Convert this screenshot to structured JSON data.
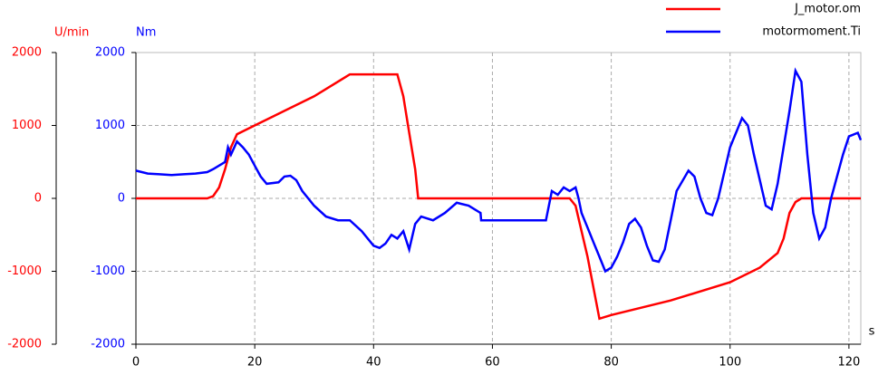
{
  "chart_data": {
    "type": "line",
    "y_label": "U/min",
    "y2_label": "Nm",
    "x_label": "s",
    "xlim": [
      0,
      122
    ],
    "xticks": [
      0,
      20,
      40,
      60,
      80,
      100,
      120
    ],
    "ylim": [
      -2000,
      2000
    ],
    "yticks": [
      -2000,
      -1000,
      0,
      1000,
      2000
    ],
    "y2lim": [
      -2000,
      2000
    ],
    "y2ticks": [
      -2000,
      -1000,
      0,
      1000,
      2000
    ],
    "y_color": "#ff0000",
    "y2_color": "#0000ff",
    "grid": true,
    "legend": "top-right",
    "series": [
      {
        "name": "J_motor.om",
        "color": "#ff0000",
        "x": [
          0,
          12,
          13,
          14,
          15,
          16,
          17,
          20,
          25,
          30,
          36,
          44,
          45,
          46,
          47,
          47.5,
          70,
          73,
          74,
          76,
          78,
          80,
          90,
          100,
          105,
          108,
          109,
          110,
          111,
          112,
          122
        ],
        "values": [
          0,
          0,
          30,
          150,
          400,
          700,
          880,
          1000,
          1200,
          1400,
          1700,
          1700,
          1400,
          900,
          400,
          0,
          0,
          0,
          -100,
          -800,
          -1650,
          -1600,
          -1400,
          -1150,
          -950,
          -750,
          -550,
          -200,
          -50,
          0,
          0
        ]
      },
      {
        "name": "motormoment.Ti",
        "color": "#0000ff",
        "axis": "y2",
        "x": [
          0,
          2,
          4,
          6,
          8,
          10,
          12,
          13,
          14,
          15,
          15.5,
          16,
          17,
          18,
          19,
          20,
          21,
          22,
          24,
          25,
          26,
          27,
          28,
          30,
          32,
          34,
          36,
          38,
          40,
          41,
          42,
          43,
          44,
          45,
          46,
          47,
          48,
          50,
          52,
          54,
          56,
          58,
          58.1,
          69,
          70,
          71,
          72,
          73,
          74,
          74.5,
          75,
          76,
          77,
          78,
          79,
          80,
          81,
          82,
          83,
          84,
          85,
          86,
          87,
          88,
          89,
          90,
          91,
          93,
          94,
          95,
          96,
          97,
          98,
          100,
          102,
          103,
          104,
          106,
          107,
          108,
          110,
          111,
          112,
          113,
          114,
          115,
          116,
          117,
          119,
          120,
          121.5,
          122
        ],
        "values": [
          380,
          340,
          330,
          320,
          330,
          340,
          360,
          400,
          450,
          500,
          700,
          600,
          780,
          700,
          600,
          450,
          300,
          200,
          220,
          300,
          310,
          250,
          100,
          -100,
          -250,
          -300,
          -300,
          -450,
          -650,
          -680,
          -620,
          -500,
          -550,
          -450,
          -700,
          -350,
          -250,
          -300,
          -200,
          -60,
          -100,
          -200,
          -300,
          -300,
          100,
          50,
          150,
          100,
          150,
          0,
          -200,
          -400,
          -600,
          -800,
          -1000,
          -950,
          -800,
          -600,
          -350,
          -280,
          -400,
          -650,
          -850,
          -870,
          -700,
          -300,
          100,
          380,
          300,
          0,
          -200,
          -230,
          0,
          700,
          1100,
          1000,
          600,
          -100,
          -150,
          200,
          1200,
          1750,
          1600,
          600,
          -200,
          -550,
          -400,
          0,
          600,
          850,
          900,
          800
        ]
      }
    ]
  }
}
